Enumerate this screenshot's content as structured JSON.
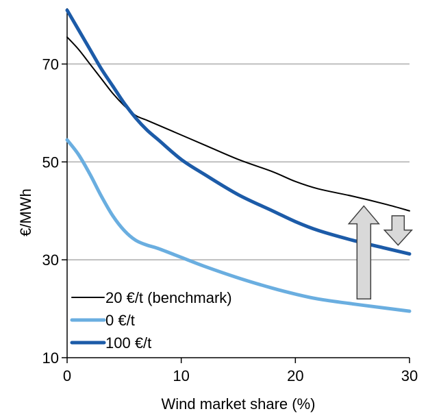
{
  "chart_data": {
    "type": "line",
    "title": "",
    "xlabel": "Wind market share (%)",
    "ylabel": "€/MWh",
    "xlim": [
      0,
      30
    ],
    "ylim": [
      10,
      80
    ],
    "xticks": [
      "0",
      "10",
      "20",
      "30"
    ],
    "yticks": [
      "10",
      "30",
      "50",
      "70"
    ],
    "grid": "horizontal",
    "legend_placement": "bottom-left",
    "series": [
      {
        "name": "20 €/t (benchmark)",
        "color": "#000000",
        "x": [
          0,
          1,
          2,
          3,
          4,
          5,
          6,
          7,
          8,
          10,
          12,
          15,
          18,
          20,
          22,
          25,
          28,
          30
        ],
        "y": [
          75.5,
          73,
          70,
          67,
          64,
          61.5,
          59.5,
          58.5,
          57.5,
          55.5,
          53.5,
          50.5,
          48,
          46,
          44.5,
          43,
          41.3,
          40
        ]
      },
      {
        "name": "0 €/t",
        "color": "#6aaee0",
        "x": [
          0,
          1,
          2,
          3,
          4,
          5,
          6,
          7,
          8,
          10,
          12,
          15,
          18,
          20,
          22,
          25,
          28,
          30
        ],
        "y": [
          54.5,
          51.5,
          47.5,
          43,
          39,
          36,
          34,
          33,
          32.3,
          30.5,
          28.7,
          26.3,
          24.2,
          23,
          22,
          21,
          20.1,
          19.5
        ]
      },
      {
        "name": "100 €/t",
        "color": "#1c5ba8",
        "x": [
          0,
          1,
          2,
          3,
          4,
          5,
          6,
          7,
          8,
          10,
          12,
          15,
          18,
          20,
          22,
          25,
          28,
          30
        ],
        "y": [
          81,
          77,
          73,
          69,
          65.5,
          62,
          59,
          56.5,
          54.5,
          50.5,
          47.5,
          43.3,
          40,
          37.8,
          36,
          34,
          32.3,
          31.2
        ]
      }
    ],
    "annotations": [
      {
        "type": "arrow-up",
        "color": "#d9d9d9",
        "x": 26,
        "y_from": 22,
        "y_to": 41
      },
      {
        "type": "arrow-down",
        "color": "#d9d9d9",
        "x": 29,
        "y_from": 39,
        "y_to": 33
      }
    ]
  }
}
